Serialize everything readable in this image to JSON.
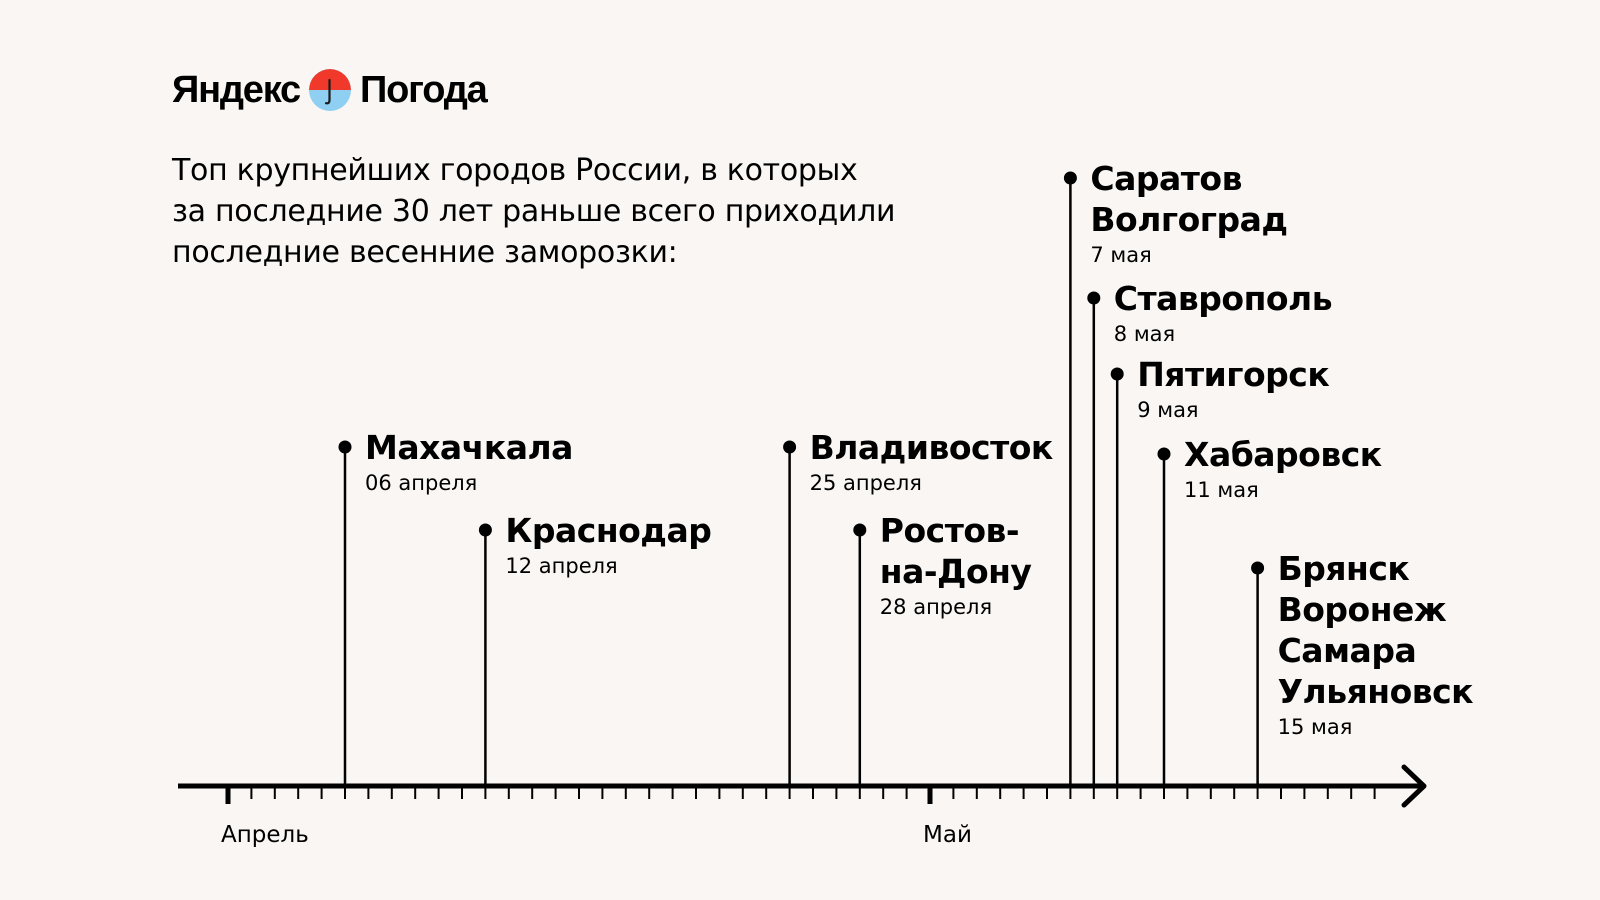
{
  "brand": {
    "name_left": "Яндекс",
    "name_right": "Погода",
    "logo_icon": "umbrella-sun-icon",
    "colors": {
      "umbrella": "#f0392b",
      "sky": "#8fd0f2"
    }
  },
  "headline": {
    "lines": [
      "Топ крупнейших городов России, в которых",
      "за последние 30 лет раньше всего приходили",
      "последние весенние заморозки:"
    ]
  },
  "chart_data": {
    "type": "timeline",
    "x_axis": {
      "start": "04-01",
      "end": "05-20",
      "unit": "day"
    },
    "months": [
      {
        "label": "Апрель",
        "date": "04-01"
      },
      {
        "label": "Май",
        "date": "05-01"
      }
    ],
    "events": [
      {
        "date": "04-06",
        "date_label": "06 апреля",
        "cities": [
          "Махачкала"
        ]
      },
      {
        "date": "04-12",
        "date_label": "12 апреля",
        "cities": [
          "Краснодар"
        ]
      },
      {
        "date": "04-25",
        "date_label": "25 апреля",
        "cities": [
          "Владивосток"
        ]
      },
      {
        "date": "04-28",
        "date_label": "28 апреля",
        "cities": [
          "Ростов-",
          "на-Дону"
        ]
      },
      {
        "date": "05-07",
        "date_label": "7 мая",
        "cities": [
          "Саратов",
          "Волгоград"
        ]
      },
      {
        "date": "05-08",
        "date_label": "8 мая",
        "cities": [
          "Ставрополь"
        ]
      },
      {
        "date": "05-09",
        "date_label": "9 мая",
        "cities": [
          "Пятигорск"
        ]
      },
      {
        "date": "05-11",
        "date_label": "11 мая",
        "cities": [
          "Хабаровск"
        ]
      },
      {
        "date": "05-15",
        "date_label": "15 мая",
        "cities": [
          "Брянск",
          "Воронеж",
          "Самара",
          "Ульяновск"
        ]
      }
    ]
  }
}
